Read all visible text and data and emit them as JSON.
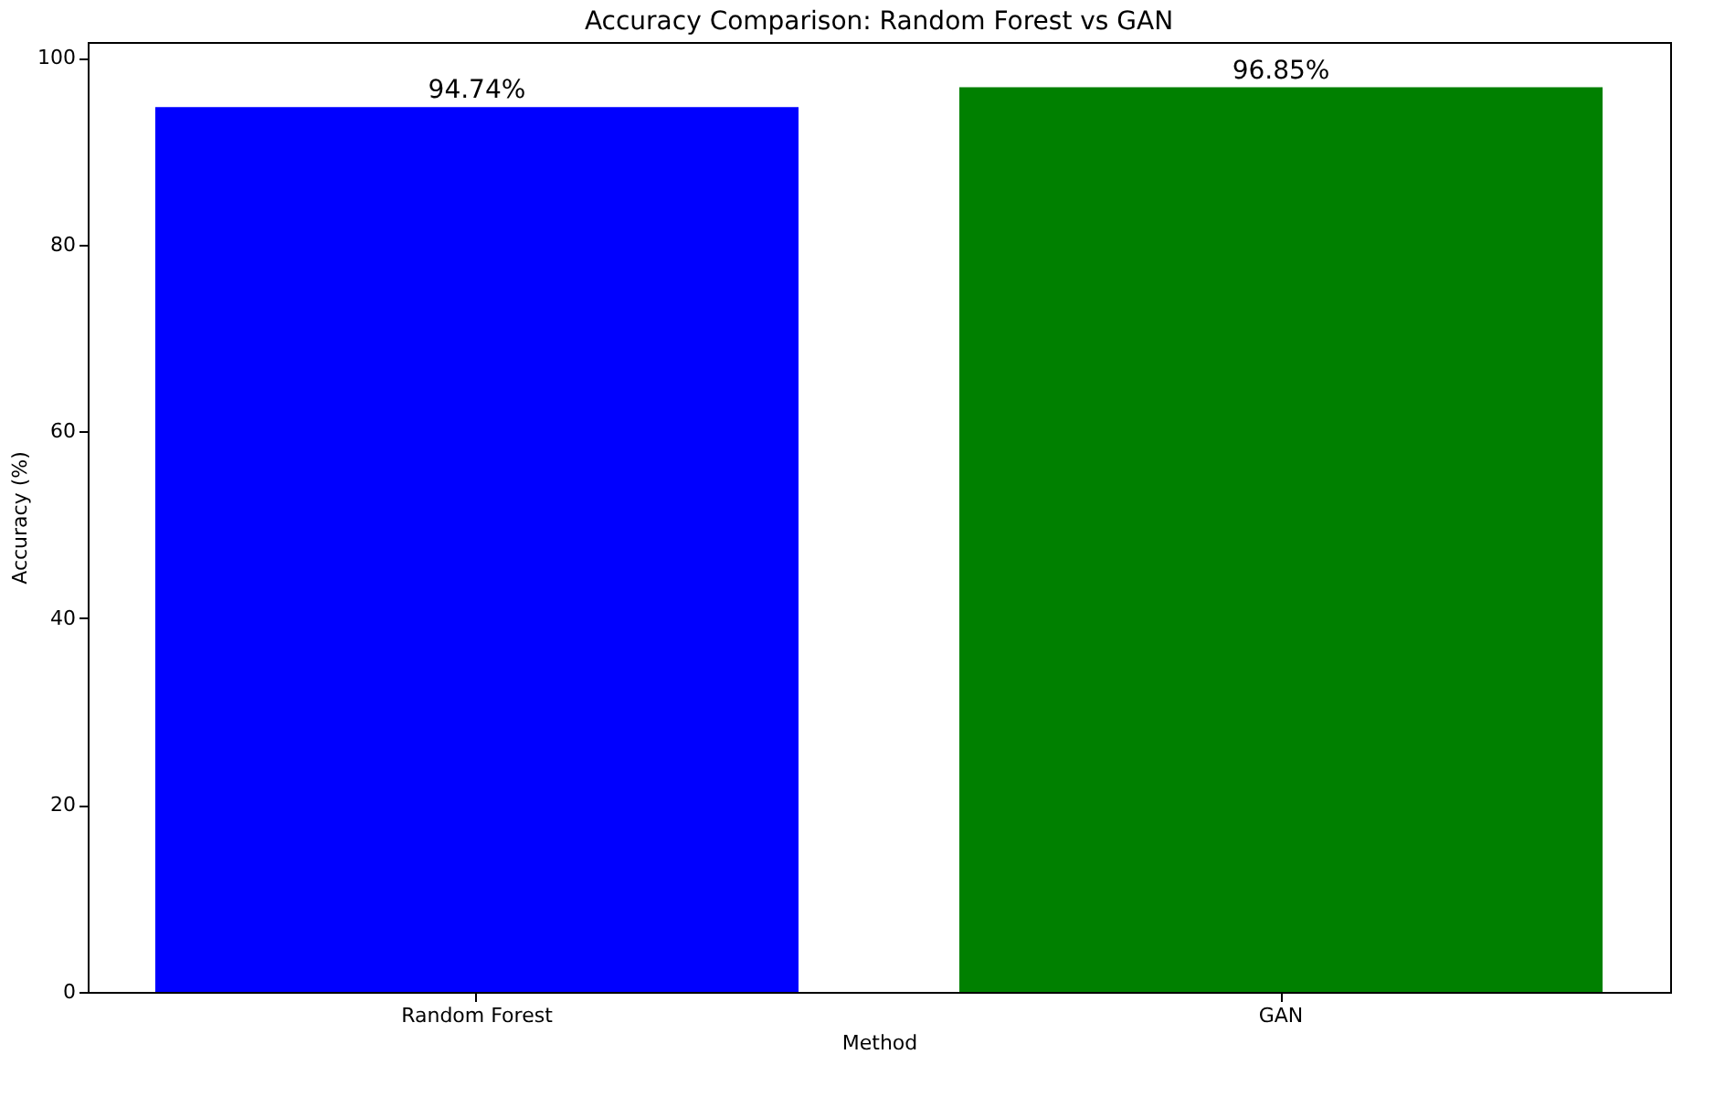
{
  "chart_data": {
    "type": "bar",
    "title": "Accuracy Comparison: Random Forest vs GAN",
    "xlabel": "Method",
    "ylabel": "Accuracy (%)",
    "categories": [
      "Random Forest",
      "GAN"
    ],
    "values": [
      94.74,
      96.85
    ],
    "colors": [
      "#0000ff",
      "#008000"
    ],
    "value_labels": [
      "94.74%",
      "96.85%"
    ],
    "ylim": [
      0,
      101.7
    ],
    "yticks": [
      0,
      20,
      40,
      60,
      80,
      100
    ],
    "grid": false
  }
}
